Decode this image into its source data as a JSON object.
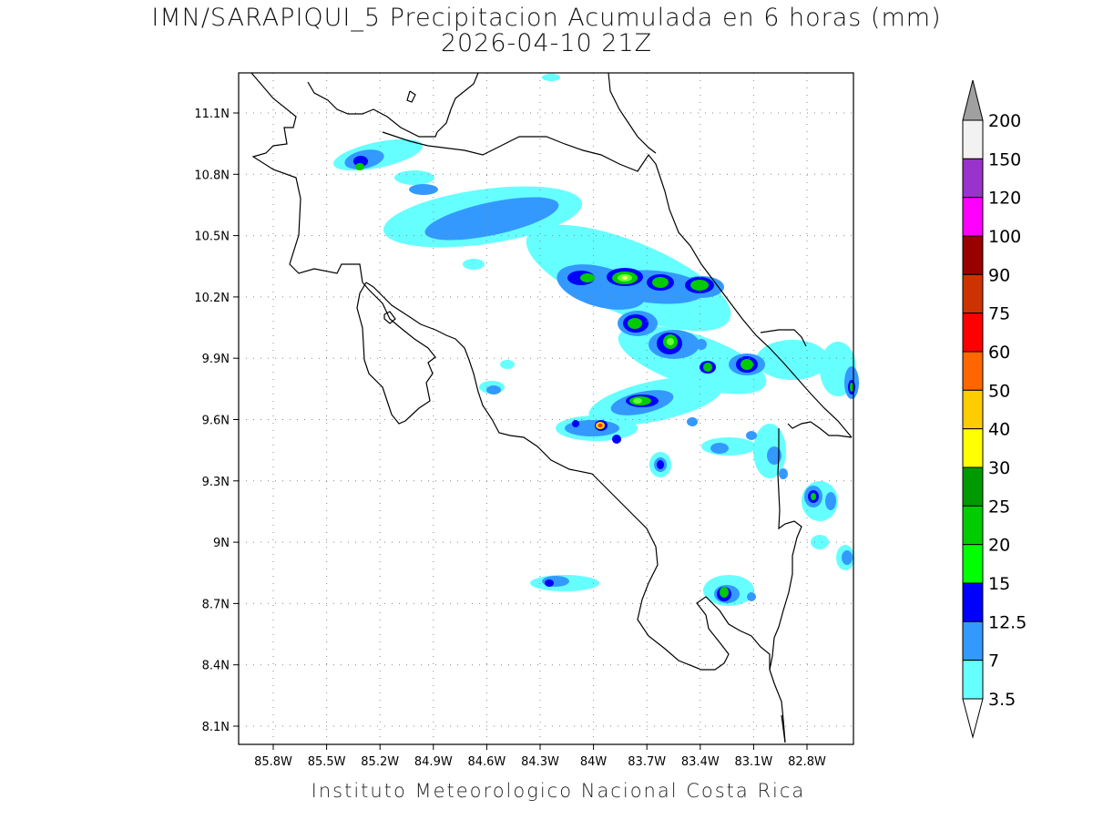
{
  "title": "IMN/SARAPIQUI_5 Precipitacion Acumulada en 6 horas (mm)",
  "subtitle": "2026-04-10 21Z",
  "footer": "Instituto Meteorologico Nacional Costa Rica",
  "lat_ticks": [
    "11.1N",
    "10.8N",
    "10.5N",
    "10.2N",
    "9.9N",
    "9.6N",
    "9.3N",
    "9N",
    "8.7N",
    "8.4N",
    "8.1N"
  ],
  "lon_ticks": [
    "85.8W",
    "85.5W",
    "85.2W",
    "84.9W",
    "84.6W",
    "84.3W",
    "84W",
    "83.7W",
    "83.4W",
    "83.1W",
    "82.8W"
  ],
  "colorbar": {
    "labels": [
      "200",
      "150",
      "120",
      "100",
      "90",
      "75",
      "60",
      "50",
      "40",
      "30",
      "25",
      "20",
      "15",
      "12.5",
      "7",
      "3.5"
    ],
    "colors": [
      "#f2f2f2",
      "#9933cc",
      "#ff00ff",
      "#990000",
      "#cc3300",
      "#ff0000",
      "#ff6600",
      "#ffcc00",
      "#ffff00",
      "#009900",
      "#00cc00",
      "#00ff00",
      "#0000ff",
      "#3399ff",
      "#66ffff"
    ],
    "over_color": "#a0a0a0",
    "under_color": "#ffffff"
  }
}
